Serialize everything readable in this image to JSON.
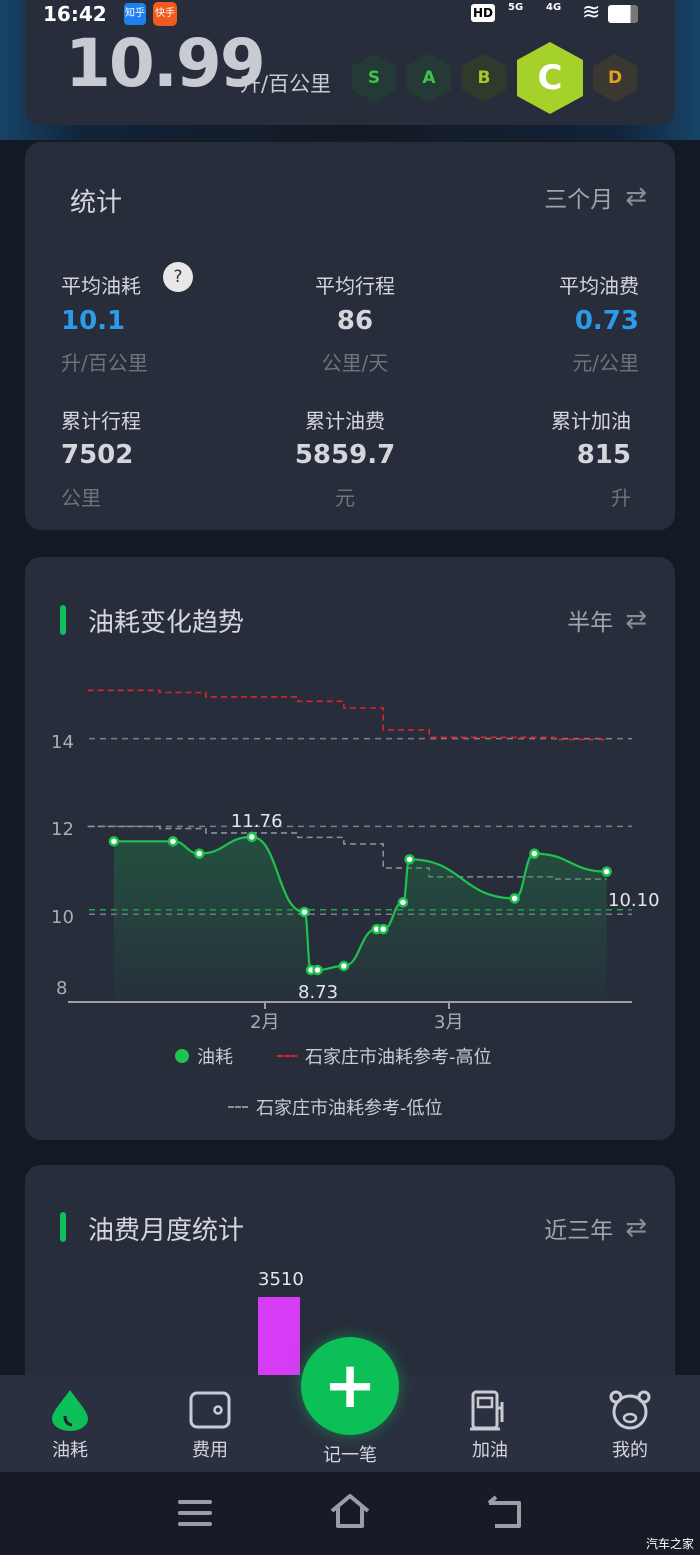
{
  "status_bar": {
    "time": "16:42",
    "app_badges": [
      "知乎",
      "快手"
    ],
    "network": [
      "HD",
      "5G",
      "4G"
    ],
    "wifi_icon": "wifi-icon",
    "battery_icon": "battery-icon"
  },
  "header": {
    "consumption": "10.99",
    "unit": "升/百公里",
    "grades": [
      "S",
      "A",
      "B",
      "C",
      "D"
    ],
    "active_grade": "C",
    "grade_colors": {
      "S": "#3ec24a",
      "A": "#3ec24a",
      "B": "#a6c829",
      "C": "#a6d12a",
      "D": "#e0a020"
    }
  },
  "stats": {
    "title": "统计",
    "period": "三个月",
    "items": [
      {
        "label": "平均油耗",
        "value": "10.1",
        "unit": "升/百公里",
        "help": "?"
      },
      {
        "label": "平均行程",
        "value": "86",
        "unit": "公里/天"
      },
      {
        "label": "平均油费",
        "value": "0.73",
        "unit": "元/公里"
      },
      {
        "label": "累计行程",
        "value": "7502",
        "unit": "公里"
      },
      {
        "label": "累计油费",
        "value": "5859.7",
        "unit": "元"
      },
      {
        "label": "累计加油",
        "value": "815",
        "unit": "升"
      }
    ]
  },
  "trend": {
    "title": "油耗变化趋势",
    "period": "半年",
    "max_label": "11.76",
    "min_label": "8.73",
    "avg_label": "10.10"
  },
  "monthly": {
    "title": "油费月度统计",
    "period": "近三年",
    "bar_label": "3510"
  },
  "chart_data": [
    {
      "type": "line",
      "ylim": [
        8,
        15.3
      ],
      "yticks": [
        "8",
        "10",
        "12",
        "14"
      ],
      "xticks": [
        "2月",
        "3月"
      ],
      "grid": "dashed horizontal",
      "series": [
        {
          "name": "油耗",
          "color": "#1fc24d",
          "x": [
            "01-09",
            "01-18",
            "01-22",
            "01-30",
            "02-07",
            "02-08",
            "02-09",
            "02-13",
            "02-18",
            "02-19",
            "02-22",
            "02-23",
            "03-11",
            "03-14",
            "03-25"
          ],
          "y": [
            11.66,
            11.66,
            11.38,
            11.76,
            10.05,
            8.73,
            8.73,
            8.82,
            9.66,
            9.66,
            10.27,
            11.25,
            10.36,
            11.38,
            10.97
          ]
        },
        {
          "name": "石家庄市油耗参考-高位",
          "color": "#d9252b",
          "style": "dashed-step",
          "x": [
            "01-05",
            "01-16",
            "01-23",
            "02-06",
            "02-13",
            "02-19",
            "02-26",
            "03-17",
            "03-25"
          ],
          "y": [
            15.1,
            15.05,
            14.95,
            14.85,
            14.7,
            14.2,
            14.03,
            13.98,
            13.98
          ]
        },
        {
          "name": "石家庄市油耗参考-低位",
          "color": "#8c9098",
          "style": "dashed-step",
          "x": [
            "01-05",
            "01-16",
            "01-23",
            "02-06",
            "02-13",
            "02-19",
            "02-26",
            "03-17",
            "03-25"
          ],
          "y": [
            12.0,
            11.95,
            11.85,
            11.75,
            11.6,
            11.05,
            10.85,
            10.8,
            10.8
          ]
        }
      ],
      "average": 10.1,
      "legend": "bottom"
    },
    {
      "type": "bar",
      "values": [
        3510
      ],
      "bar_color": "#d63cf5"
    }
  ],
  "bottom_nav": [
    {
      "label": "油耗",
      "icon": "drop-icon",
      "active": true
    },
    {
      "label": "费用",
      "icon": "wallet-icon"
    },
    {
      "label": "记一笔",
      "icon": "plus-icon"
    },
    {
      "label": "加油",
      "icon": "fuel-pump-icon"
    },
    {
      "label": "我的",
      "icon": "bear-icon"
    }
  ],
  "watermark": "汽车之家",
  "colors": {
    "accent": "#0dbf57",
    "blue": "#2d9be8",
    "card": "#272d3b",
    "bg": "#141a24"
  }
}
